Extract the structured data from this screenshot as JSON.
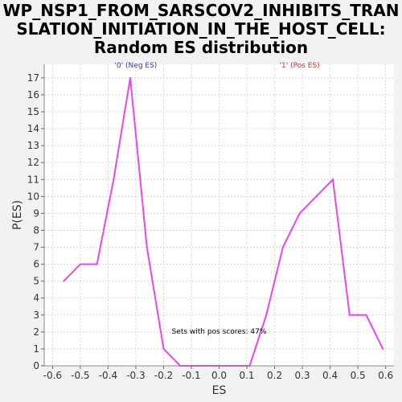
{
  "title_lines": [
    "WP_NSP1_FROM_SARSCOV2_INHIBITS_TRAN",
    "SLATION_INITIATION_IN_THE_HOST_CELL:",
    "Random ES distribution"
  ],
  "chart_data": {
    "type": "line",
    "title": "WP_NSP1_FROM_SARSCOV2_INHIBITS_TRANSLATION_INITIATION_IN_THE_HOST_CELL: Random ES distribution",
    "xlabel": "ES",
    "ylabel": "P(ES)",
    "xlim": [
      -0.63,
      0.63
    ],
    "ylim": [
      0,
      17.8
    ],
    "xticks": [
      -0.6,
      -0.5,
      -0.4,
      -0.3,
      -0.2,
      -0.1,
      0.0,
      0.1,
      0.2,
      0.3,
      0.4,
      0.5,
      0.6
    ],
    "xtick_labels": [
      "-0.6",
      "-0.5",
      "-0.4",
      "-0.3",
      "-0.2",
      "-0.1",
      "0.0",
      "0.1",
      "0.2",
      "0.3",
      "0.4",
      "0.5",
      "0.6"
    ],
    "yticks": [
      0,
      1,
      2,
      3,
      4,
      5,
      6,
      7,
      8,
      9,
      10,
      11,
      12,
      13,
      14,
      15,
      16,
      17
    ],
    "grid": true,
    "series": [
      {
        "color": "#ee44ee",
        "x": [
          -0.56,
          -0.5,
          -0.44,
          -0.38,
          -0.32,
          -0.26,
          -0.2,
          -0.14,
          -0.08,
          -0.02,
          0.04,
          0.11,
          0.17,
          0.23,
          0.29,
          0.35,
          0.41,
          0.47,
          0.53,
          0.59
        ],
        "y": [
          5,
          6,
          6,
          11,
          17,
          7,
          1,
          0,
          0,
          0,
          0,
          0,
          3,
          7,
          9,
          10,
          11,
          3,
          3,
          1
        ]
      }
    ],
    "annotations": [
      {
        "text": "'0' (Neg ES)",
        "color": "#3333cc",
        "x": -0.3,
        "y": 17.6
      },
      {
        "text": "'1' (Pos ES)",
        "color": "#cc3333",
        "x": 0.29,
        "y": 17.6
      },
      {
        "text": "Sets with pos scores: 47%",
        "color": "#000000",
        "x": 0.0,
        "y": 1.9
      }
    ]
  }
}
